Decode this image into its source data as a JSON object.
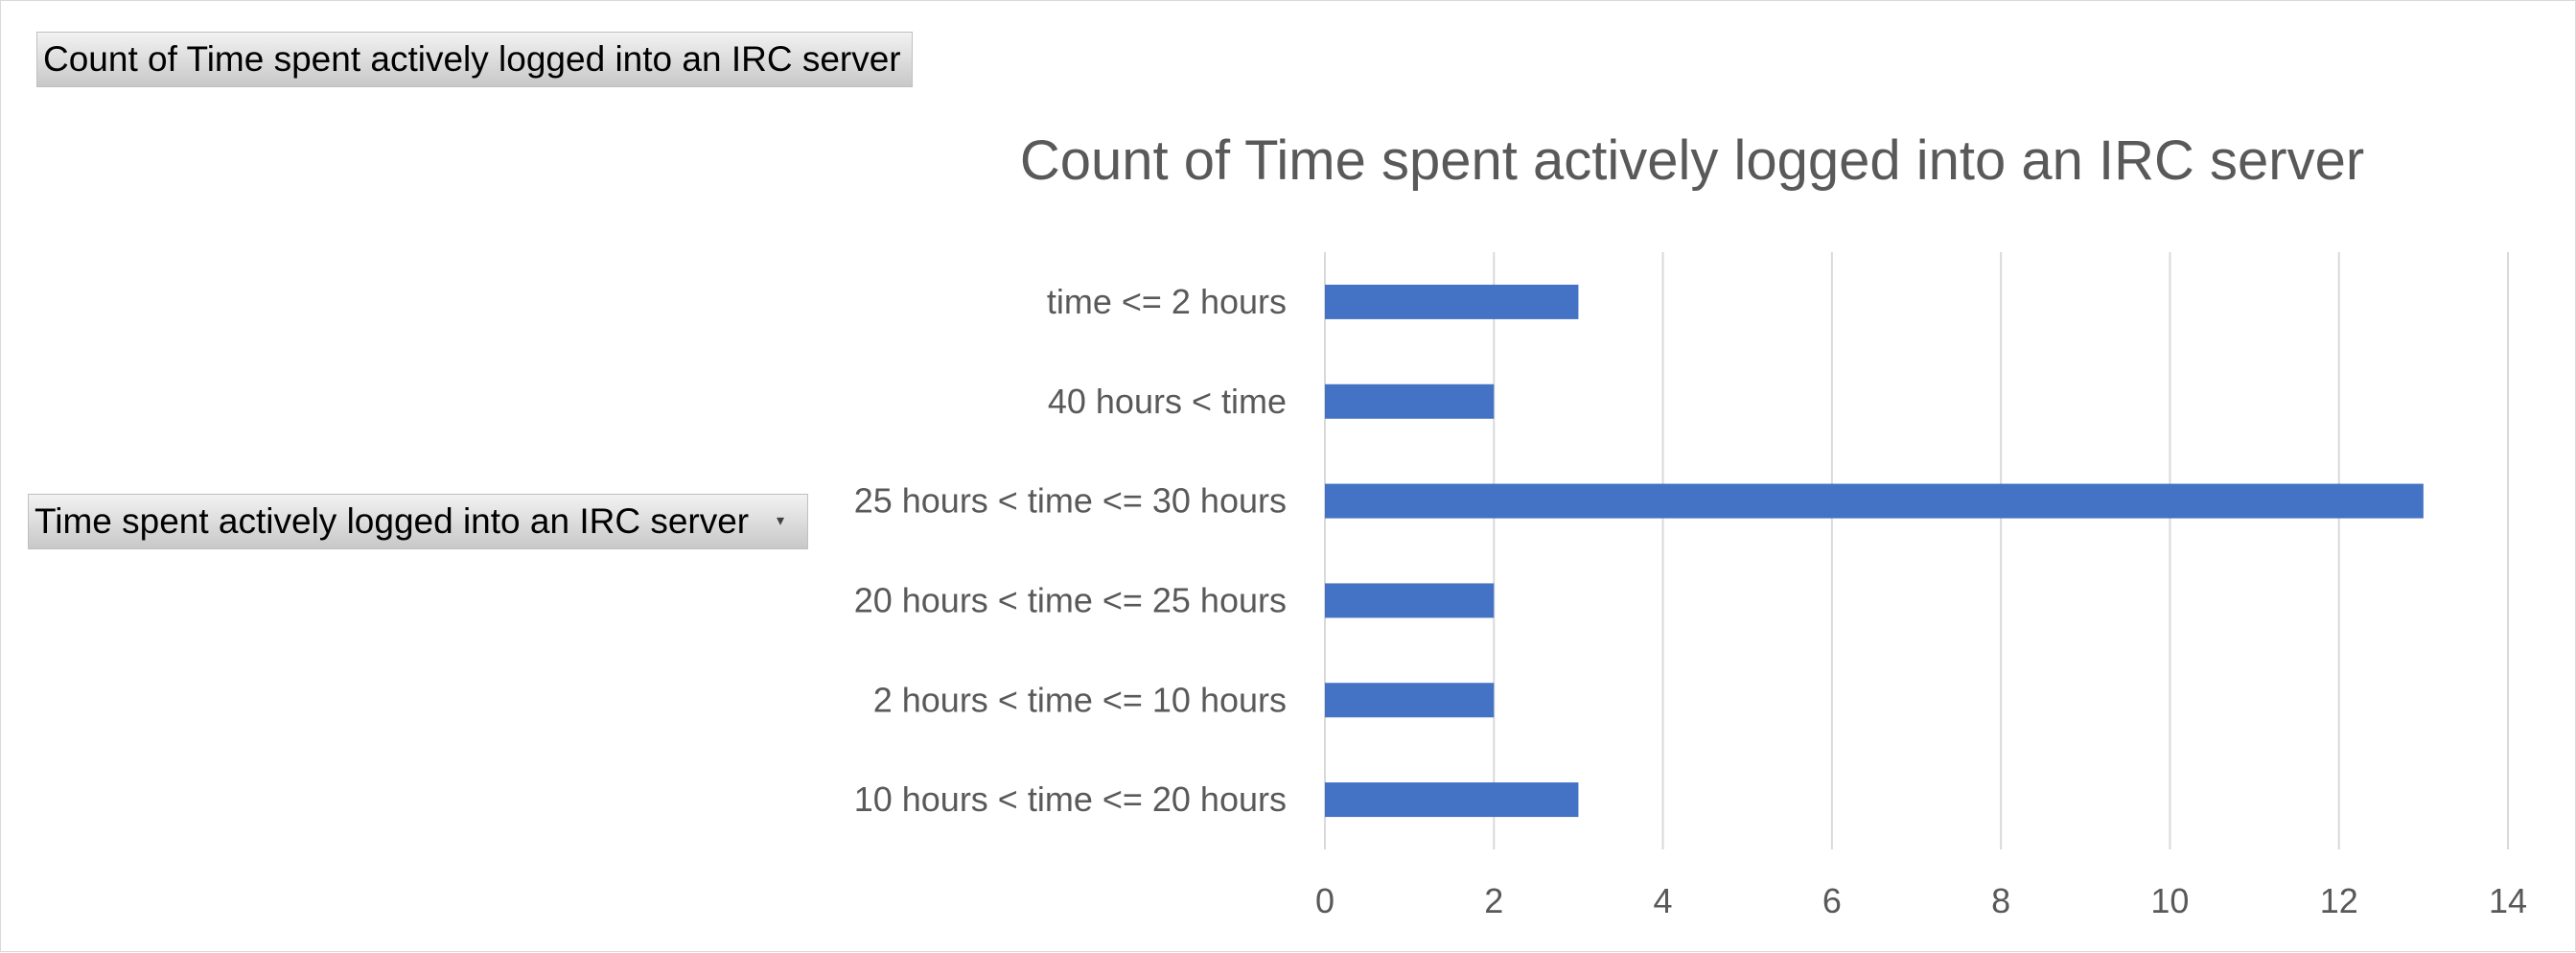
{
  "field_buttons": {
    "values_label": "Count of Time spent actively logged into an IRC server",
    "axis_label": "Time spent actively logged into an IRC server"
  },
  "colors": {
    "bar": "#4472c4",
    "gridline": "#d9d9d9",
    "text": "#595959"
  },
  "chart_data": {
    "type": "bar",
    "orientation": "horizontal",
    "title": "Count of Time spent actively logged into an IRC server",
    "categories": [
      "time <= 2 hours",
      "40 hours < time",
      "25 hours < time <= 30 hours",
      "20 hours < time <= 25 hours",
      "2 hours < time <= 10 hours",
      "10 hours < time <= 20 hours"
    ],
    "values": [
      3,
      2,
      13,
      2,
      2,
      3
    ],
    "xlim": [
      0,
      14
    ],
    "xticks": [
      0,
      2,
      4,
      6,
      8,
      10,
      12,
      14
    ],
    "grid": true,
    "legend": "none"
  }
}
